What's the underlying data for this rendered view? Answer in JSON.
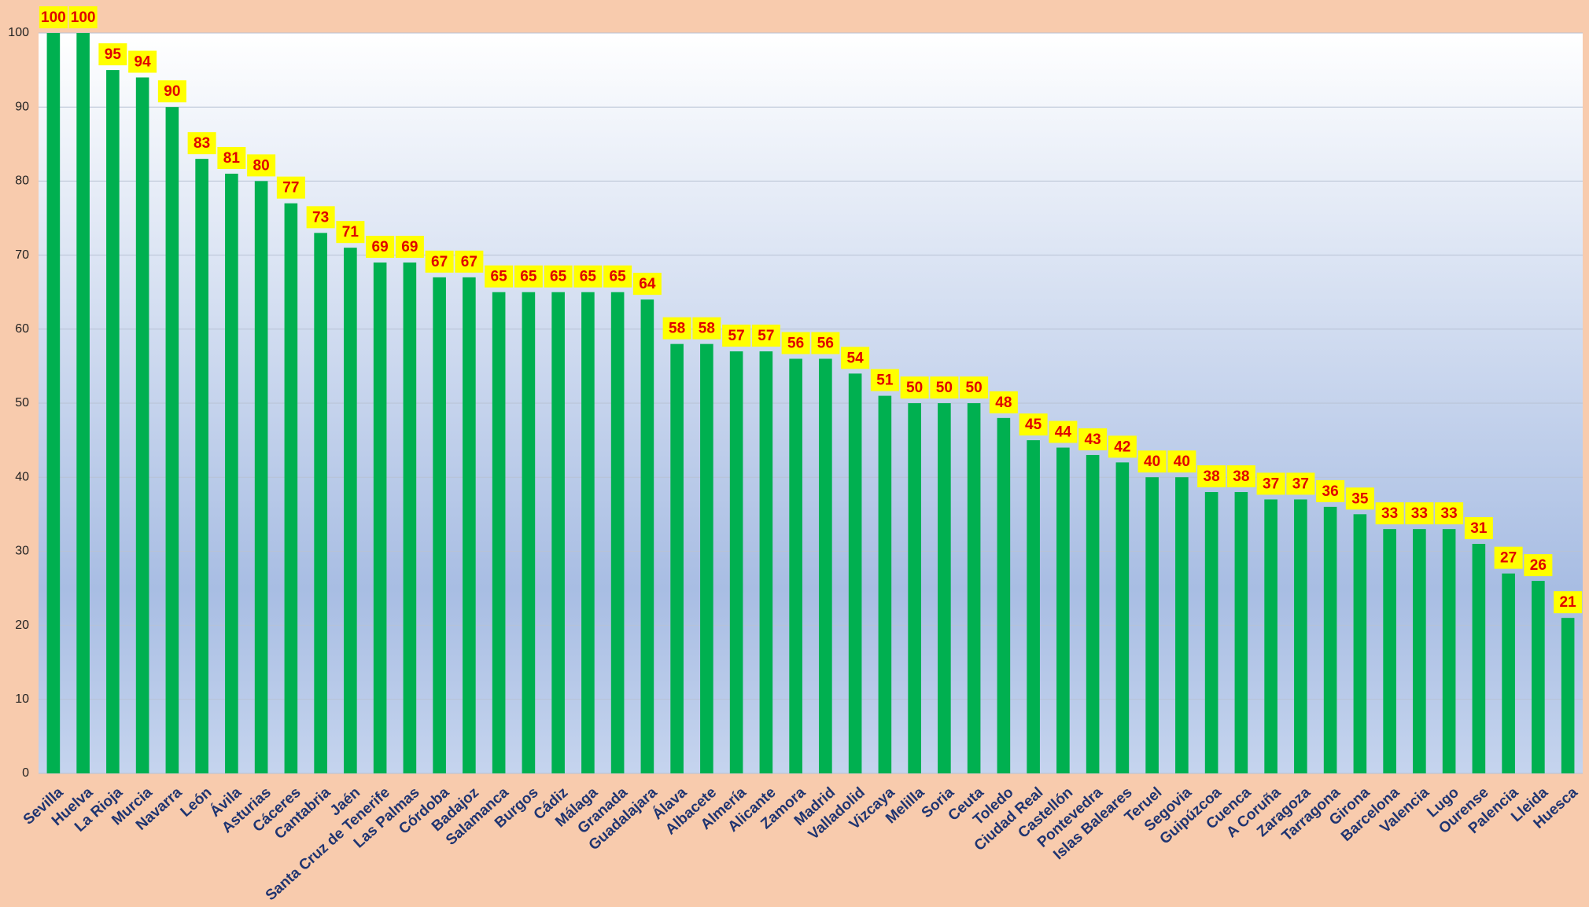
{
  "chart_data": {
    "type": "bar",
    "categories": [
      "Sevilla",
      "Huelva",
      "La Rioja",
      "Murcia",
      "Navarra",
      "León",
      "Ávila",
      "Asturias",
      "Cáceres",
      "Cantabria",
      "Jaén",
      "Santa Cruz de Tenerife",
      "Las Palmas",
      "Córdoba",
      "Badajoz",
      "Salamanca",
      "Burgos",
      "Cádiz",
      "Málaga",
      "Granada",
      "Guadalajara",
      "Álava",
      "Albacete",
      "Almería",
      "Alicante",
      "Zamora",
      "Madrid",
      "Valladolid",
      "Vizcaya",
      "Melilla",
      "Soria",
      "Ceuta",
      "Toledo",
      "Ciudad Real",
      "Castellón",
      "Pontevedra",
      "Islas Baleares",
      "Teruel",
      "Segovia",
      "Guipúzcoa",
      "Cuenca",
      "A Coruña",
      "Zaragoza",
      "Tarragona",
      "Girona",
      "Barcelona",
      "Valencia",
      "Lugo",
      "Ourense",
      "Palencia",
      "Lleida",
      "Huesca"
    ],
    "values": [
      100,
      100,
      95,
      94,
      90,
      83,
      81,
      80,
      77,
      73,
      71,
      69,
      69,
      67,
      67,
      65,
      65,
      65,
      65,
      65,
      64,
      58,
      58,
      57,
      57,
      56,
      56,
      54,
      51,
      50,
      50,
      50,
      48,
      45,
      44,
      43,
      42,
      40,
      40,
      38,
      38,
      37,
      37,
      36,
      35,
      33,
      33,
      33,
      31,
      27,
      26,
      21
    ],
    "color": "#00b050",
    "ylim": [
      0,
      100
    ],
    "yticks": [
      0,
      10,
      20,
      30,
      40,
      50,
      60,
      70,
      80,
      90,
      100
    ],
    "grid": true
  }
}
